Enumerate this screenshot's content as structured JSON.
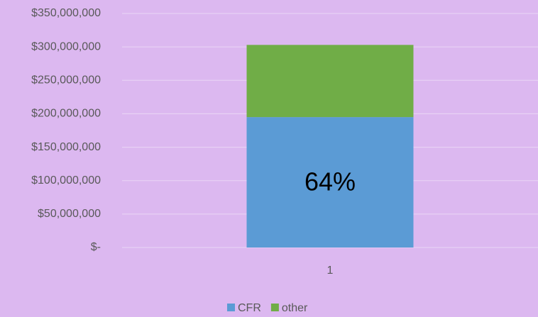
{
  "chart_data": {
    "type": "bar",
    "stacked": true,
    "categories": [
      "1"
    ],
    "series": [
      {
        "name": "CFR",
        "color": "#5b9bd5",
        "values": [
          195000000
        ]
      },
      {
        "name": "other",
        "color": "#70ad47",
        "values": [
          108000000
        ]
      }
    ],
    "annotation": "64%",
    "ylim": [
      0,
      350000000
    ],
    "yticks": [
      {
        "value": 0,
        "label": "$-"
      },
      {
        "value": 50000000,
        "label": "$50,000,000"
      },
      {
        "value": 100000000,
        "label": "$100,000,000"
      },
      {
        "value": 150000000,
        "label": "$150,000,000"
      },
      {
        "value": 200000000,
        "label": "$200,000,000"
      },
      {
        "value": 250000000,
        "label": "$250,000,000"
      },
      {
        "value": 300000000,
        "label": "$300,000,000"
      },
      {
        "value": 350000000,
        "label": "$350,000,000"
      }
    ],
    "grid": true,
    "legend": "bottom"
  }
}
